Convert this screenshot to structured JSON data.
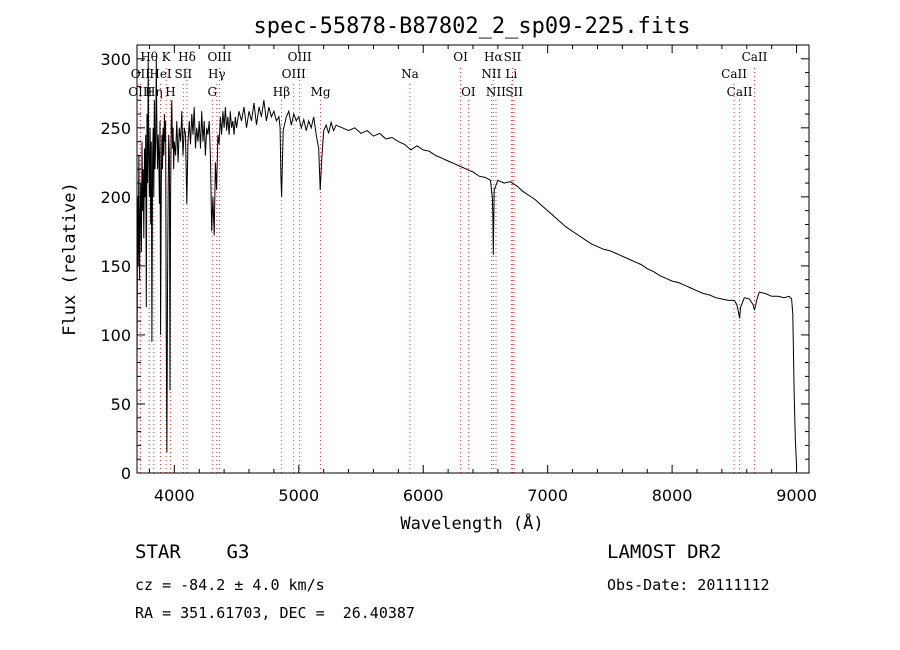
{
  "chart_data": {
    "type": "line",
    "title": "spec-55878-B87802_2_sp09-225.fits",
    "xlabel": "Wavelength (Å)",
    "ylabel": "Flux (relative)",
    "xlim": [
      3700,
      9100
    ],
    "ylim": [
      0,
      310
    ],
    "xticks": [
      4000,
      5000,
      6000,
      7000,
      8000,
      9000
    ],
    "yticks": [
      0,
      50,
      100,
      150,
      200,
      250,
      300
    ],
    "grid": false,
    "series": [
      {
        "points": [
          [
            3700,
            70
          ],
          [
            3705,
            200
          ],
          [
            3710,
            150
          ],
          [
            3715,
            230
          ],
          [
            3720,
            140
          ],
          [
            3725,
            180
          ],
          [
            3730,
            210
          ],
          [
            3735,
            160
          ],
          [
            3740,
            240
          ],
          [
            3745,
            190
          ],
          [
            3750,
            220
          ],
          [
            3755,
            170
          ],
          [
            3760,
            235
          ],
          [
            3765,
            200
          ],
          [
            3770,
            245
          ],
          [
            3775,
            120
          ],
          [
            3780,
            260
          ],
          [
            3785,
            210
          ],
          [
            3790,
            300
          ],
          [
            3795,
            230
          ],
          [
            3800,
            200
          ],
          [
            3805,
            250
          ],
          [
            3810,
            180
          ],
          [
            3815,
            240
          ],
          [
            3820,
            95
          ],
          [
            3825,
            230
          ],
          [
            3830,
            250
          ],
          [
            3835,
            200
          ],
          [
            3840,
            270
          ],
          [
            3845,
            220
          ],
          [
            3850,
            240
          ],
          [
            3855,
            300
          ],
          [
            3860,
            250
          ],
          [
            3865,
            220
          ],
          [
            3870,
            245
          ],
          [
            3875,
            230
          ],
          [
            3880,
            195
          ],
          [
            3885,
            255
          ],
          [
            3890,
            100
          ],
          [
            3895,
            210
          ],
          [
            3900,
            245
          ],
          [
            3905,
            220
          ],
          [
            3910,
            250
          ],
          [
            3915,
            230
          ],
          [
            3920,
            260
          ],
          [
            3925,
            240
          ],
          [
            3930,
            255
          ],
          [
            3935,
            110
          ],
          [
            3940,
            15
          ],
          [
            3945,
            130
          ],
          [
            3950,
            200
          ],
          [
            3955,
            245
          ],
          [
            3960,
            230
          ],
          [
            3965,
            60
          ],
          [
            3970,
            200
          ],
          [
            3975,
            250
          ],
          [
            3980,
            270
          ],
          [
            3985,
            235
          ],
          [
            3990,
            250
          ],
          [
            3995,
            220
          ],
          [
            4000,
            240
          ],
          [
            4010,
            230
          ],
          [
            4020,
            255
          ],
          [
            4030,
            225
          ],
          [
            4040,
            250
          ],
          [
            4050,
            240
          ],
          [
            4060,
            262
          ],
          [
            4070,
            230
          ],
          [
            4080,
            250
          ],
          [
            4090,
            245
          ],
          [
            4100,
            195
          ],
          [
            4110,
            240
          ],
          [
            4120,
            255
          ],
          [
            4130,
            238
          ],
          [
            4140,
            260
          ],
          [
            4150,
            245
          ],
          [
            4160,
            265
          ],
          [
            4170,
            235
          ],
          [
            4180,
            250
          ],
          [
            4190,
            240
          ],
          [
            4200,
            255
          ],
          [
            4210,
            235
          ],
          [
            4220,
            262
          ],
          [
            4230,
            240
          ],
          [
            4240,
            255
          ],
          [
            4250,
            230
          ],
          [
            4260,
            250
          ],
          [
            4270,
            245
          ],
          [
            4280,
            255
          ],
          [
            4290,
            230
          ],
          [
            4300,
            175
          ],
          [
            4310,
            200
          ],
          [
            4320,
            172
          ],
          [
            4330,
            225
          ],
          [
            4340,
            205
          ],
          [
            4350,
            245
          ],
          [
            4360,
            238
          ],
          [
            4370,
            258
          ],
          [
            4380,
            245
          ],
          [
            4390,
            262
          ],
          [
            4400,
            250
          ],
          [
            4410,
            265
          ],
          [
            4420,
            248
          ],
          [
            4430,
            258
          ],
          [
            4440,
            245
          ],
          [
            4450,
            262
          ],
          [
            4460,
            250
          ],
          [
            4470,
            255
          ],
          [
            4480,
            245
          ],
          [
            4490,
            258
          ],
          [
            4500,
            250
          ],
          [
            4520,
            262
          ],
          [
            4540,
            255
          ],
          [
            4560,
            265
          ],
          [
            4580,
            250
          ],
          [
            4600,
            262
          ],
          [
            4620,
            255
          ],
          [
            4640,
            268
          ],
          [
            4660,
            252
          ],
          [
            4680,
            265
          ],
          [
            4700,
            258
          ],
          [
            4720,
            270
          ],
          [
            4740,
            255
          ],
          [
            4760,
            265
          ],
          [
            4780,
            258
          ],
          [
            4800,
            262
          ],
          [
            4820,
            255
          ],
          [
            4840,
            258
          ],
          [
            4850,
            250
          ],
          [
            4856,
            215
          ],
          [
            4862,
            200
          ],
          [
            4868,
            225
          ],
          [
            4875,
            248
          ],
          [
            4900,
            258
          ],
          [
            4920,
            262
          ],
          [
            4940,
            252
          ],
          [
            4960,
            260
          ],
          [
            4980,
            255
          ],
          [
            5000,
            258
          ],
          [
            5020,
            250
          ],
          [
            5040,
            256
          ],
          [
            5060,
            248
          ],
          [
            5080,
            255
          ],
          [
            5100,
            250
          ],
          [
            5120,
            258
          ],
          [
            5140,
            245
          ],
          [
            5160,
            235
          ],
          [
            5172,
            205
          ],
          [
            5185,
            228
          ],
          [
            5200,
            248
          ],
          [
            5220,
            252
          ],
          [
            5240,
            246
          ],
          [
            5260,
            254
          ],
          [
            5280,
            248
          ],
          [
            5300,
            252
          ],
          [
            5350,
            250
          ],
          [
            5400,
            248
          ],
          [
            5450,
            250
          ],
          [
            5500,
            246
          ],
          [
            5550,
            248
          ],
          [
            5600,
            244
          ],
          [
            5650,
            246
          ],
          [
            5700,
            242
          ],
          [
            5750,
            243
          ],
          [
            5800,
            240
          ],
          [
            5850,
            238
          ],
          [
            5900,
            234
          ],
          [
            5950,
            237
          ],
          [
            6000,
            234
          ],
          [
            6050,
            233
          ],
          [
            6100,
            230
          ],
          [
            6150,
            228
          ],
          [
            6200,
            226
          ],
          [
            6250,
            224
          ],
          [
            6300,
            222
          ],
          [
            6350,
            220
          ],
          [
            6400,
            218
          ],
          [
            6450,
            215
          ],
          [
            6500,
            214
          ],
          [
            6540,
            212
          ],
          [
            6555,
            200
          ],
          [
            6560,
            185
          ],
          [
            6563,
            158
          ],
          [
            6566,
            180
          ],
          [
            6570,
            205
          ],
          [
            6600,
            212
          ],
          [
            6650,
            210
          ],
          [
            6700,
            211
          ],
          [
            6750,
            208
          ],
          [
            6800,
            204
          ],
          [
            6850,
            201
          ],
          [
            6900,
            198
          ],
          [
            6950,
            194
          ],
          [
            7000,
            190
          ],
          [
            7050,
            186
          ],
          [
            7100,
            182
          ],
          [
            7150,
            178
          ],
          [
            7200,
            175
          ],
          [
            7250,
            172
          ],
          [
            7300,
            169
          ],
          [
            7350,
            166
          ],
          [
            7400,
            164
          ],
          [
            7450,
            162
          ],
          [
            7500,
            161
          ],
          [
            7550,
            159
          ],
          [
            7600,
            157
          ],
          [
            7650,
            155
          ],
          [
            7700,
            153
          ],
          [
            7750,
            151
          ],
          [
            7800,
            148
          ],
          [
            7850,
            146
          ],
          [
            7900,
            143
          ],
          [
            7950,
            141
          ],
          [
            8000,
            139
          ],
          [
            8050,
            138
          ],
          [
            8100,
            136
          ],
          [
            8150,
            134
          ],
          [
            8200,
            132
          ],
          [
            8250,
            130
          ],
          [
            8300,
            129
          ],
          [
            8350,
            127
          ],
          [
            8400,
            126
          ],
          [
            8450,
            125
          ],
          [
            8498,
            125
          ],
          [
            8500,
            125
          ],
          [
            8520,
            122
          ],
          [
            8530,
            118
          ],
          [
            8542,
            112
          ],
          [
            8550,
            120
          ],
          [
            8580,
            127
          ],
          [
            8620,
            126
          ],
          [
            8650,
            122
          ],
          [
            8662,
            118
          ],
          [
            8680,
            125
          ],
          [
            8700,
            131
          ],
          [
            8750,
            130
          ],
          [
            8800,
            128
          ],
          [
            8850,
            128
          ],
          [
            8900,
            127
          ],
          [
            8940,
            128
          ],
          [
            8960,
            126
          ],
          [
            8970,
            115
          ],
          [
            8980,
            60
          ],
          [
            8990,
            25
          ],
          [
            9000,
            5
          ]
        ]
      }
    ],
    "lines": [
      {
        "label": "Hθ",
        "x": 3798,
        "row": 0
      },
      {
        "label": "OII",
        "x": 3727,
        "row": 1
      },
      {
        "label": "OIII",
        "x": 3727,
        "row": 2
      },
      {
        "label": "Hη",
        "x": 3835,
        "row": 2
      },
      {
        "label": "HeI",
        "x": 3889,
        "row": 1
      },
      {
        "label": "K",
        "x": 3934,
        "row": 0
      },
      {
        "label": "H",
        "x": 3969,
        "row": 2
      },
      {
        "label": "SII",
        "x": 4072,
        "row": 1
      },
      {
        "label": "Hδ",
        "x": 4102,
        "row": 0
      },
      {
        "label": "OIII",
        "x": 4363,
        "row": 0
      },
      {
        "label": "Hγ",
        "x": 4341,
        "row": 1
      },
      {
        "label": "G",
        "x": 4305,
        "row": 2
      },
      {
        "label": "Hβ",
        "x": 4861,
        "row": 2
      },
      {
        "label": "OIII",
        "x": 4959,
        "row": 1
      },
      {
        "label": "OIII",
        "x": 5007,
        "row": 0
      },
      {
        "label": "Mg",
        "x": 5175,
        "row": 2
      },
      {
        "label": "Na",
        "x": 5893,
        "row": 1
      },
      {
        "label": "OI",
        "x": 6300,
        "row": 0
      },
      {
        "label": "OI",
        "x": 6363,
        "row": 2
      },
      {
        "label": "Hα",
        "x": 6563,
        "row": 0
      },
      {
        "label": "NII",
        "x": 6548,
        "row": 1
      },
      {
        "label": "NII",
        "x": 6584,
        "row": 2
      },
      {
        "label": "SII",
        "x": 6717,
        "row": 0
      },
      {
        "label": "SII",
        "x": 6731,
        "row": 2
      },
      {
        "label": "Li",
        "x": 6708,
        "row": 1
      },
      {
        "label": "CaII",
        "x": 8662,
        "row": 0
      },
      {
        "label": "CaII",
        "x": 8498,
        "row": 1
      },
      {
        "label": "CaII",
        "x": 8542,
        "row": 2
      }
    ]
  },
  "info": {
    "classification": "STAR    G3",
    "survey": "LAMOST DR2",
    "cz": "cz = -84.2 ± 4.0 km/s",
    "obs_date": "Obs-Date: 20111112",
    "radec": "RA = 351.61703, DEC =  26.40387"
  }
}
